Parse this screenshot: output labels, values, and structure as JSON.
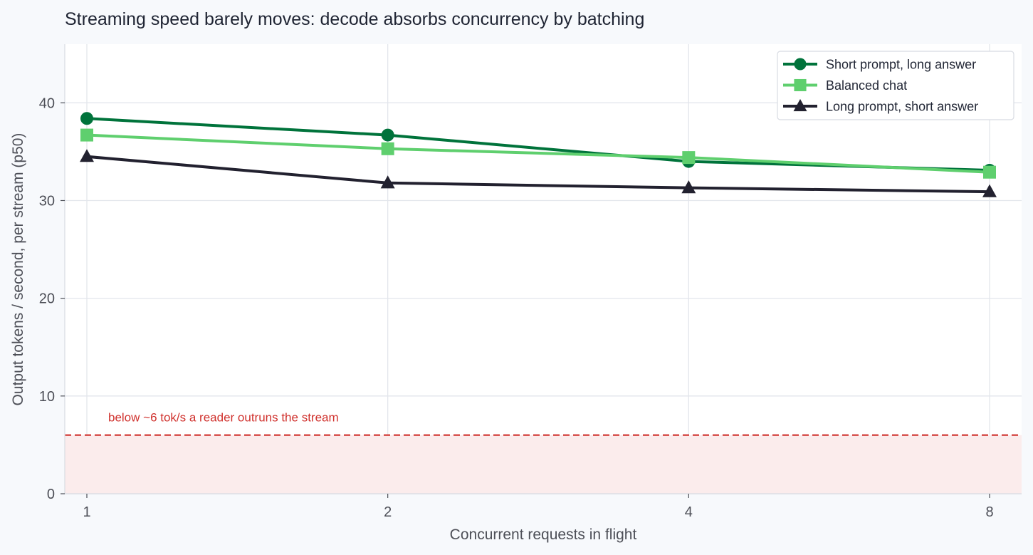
{
  "chart_data": {
    "type": "line",
    "title": "Streaming speed barely moves: decode absorbs concurrency by batching",
    "xlabel": "Concurrent requests in flight",
    "ylabel": "Output tokens / second, per stream (p50)",
    "x_scale": "log2",
    "x": [
      1,
      2,
      4,
      8
    ],
    "x_tick_labels": [
      "1",
      "2",
      "4",
      "8"
    ],
    "ylim": [
      0,
      46
    ],
    "y_ticks": [
      0,
      10,
      20,
      30,
      40
    ],
    "y_tick_labels": [
      "0",
      "10",
      "20",
      "30",
      "40"
    ],
    "grid": true,
    "legend_position": "top-right",
    "series": [
      {
        "name": "Short prompt, long answer",
        "values": [
          38.4,
          36.7,
          34.0,
          33.1
        ],
        "color": "#00733b",
        "marker": "circle"
      },
      {
        "name": "Balanced chat",
        "values": [
          36.7,
          35.3,
          34.4,
          32.9
        ],
        "color": "#5fcf6e",
        "marker": "square"
      },
      {
        "name": "Long prompt, short answer",
        "values": [
          34.5,
          31.8,
          31.3,
          30.9
        ],
        "color": "#22212f",
        "marker": "triangle"
      }
    ],
    "threshold": {
      "value": 6,
      "label": "below ~6 tok/s a reader outruns the stream",
      "color": "#d0312d",
      "shade_color": "#fbecec"
    }
  }
}
